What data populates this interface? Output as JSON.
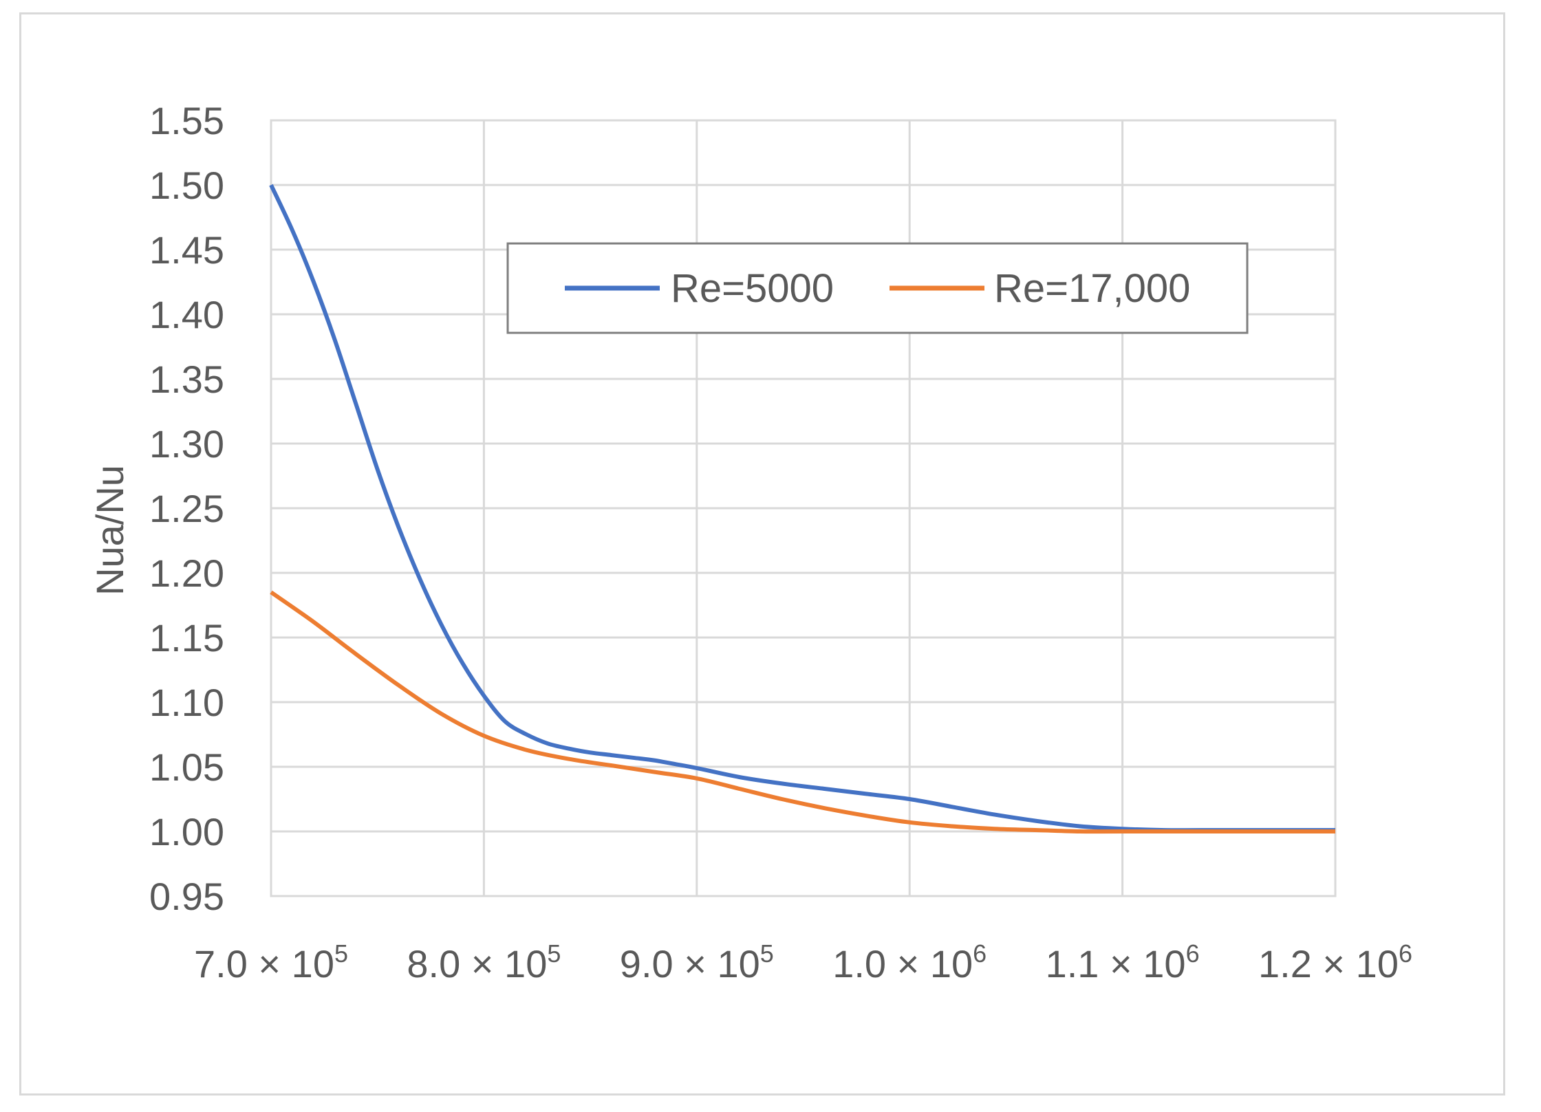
{
  "chart_data": {
    "type": "line",
    "title": "",
    "xlabel": "",
    "ylabel": "Nua/Nu",
    "xlim": [
      700000,
      1200000
    ],
    "ylim": [
      0.95,
      1.55
    ],
    "x_ticks": [
      {
        "value": 700000,
        "mantissa": "7.0",
        "times": "×",
        "base": "10",
        "exp": "5"
      },
      {
        "value": 800000,
        "mantissa": "8.0",
        "times": "×",
        "base": "10",
        "exp": "5"
      },
      {
        "value": 900000,
        "mantissa": "9.0",
        "times": "×",
        "base": "10",
        "exp": "5"
      },
      {
        "value": 1000000,
        "mantissa": "1.0",
        "times": "×",
        "base": "10",
        "exp": "6"
      },
      {
        "value": 1100000,
        "mantissa": "1.1",
        "times": "×",
        "base": "10",
        "exp": "6"
      },
      {
        "value": 1200000,
        "mantissa": "1.2",
        "times": "×",
        "base": "10",
        "exp": "6"
      }
    ],
    "y_ticks": [
      "0.95",
      "1.00",
      "1.05",
      "1.10",
      "1.15",
      "1.20",
      "1.25",
      "1.30",
      "1.35",
      "1.40",
      "1.45",
      "1.50",
      "1.55"
    ],
    "grid": true,
    "legend": "top-center",
    "series": [
      {
        "name": "Re=5000",
        "color": "#4472c4",
        "x": [
          700000,
          710000,
          720000,
          730000,
          740000,
          750000,
          760000,
          770000,
          780000,
          790000,
          800000,
          810000,
          820000,
          830000,
          840000,
          850000,
          860000,
          870000,
          880000,
          890000,
          900000,
          920000,
          940000,
          960000,
          980000,
          1000000,
          1020000,
          1040000,
          1060000,
          1080000,
          1100000,
          1120000,
          1150000,
          1200000
        ],
        "y": [
          1.5,
          1.465,
          1.425,
          1.38,
          1.33,
          1.28,
          1.235,
          1.195,
          1.16,
          1.13,
          1.105,
          1.085,
          1.075,
          1.068,
          1.064,
          1.061,
          1.059,
          1.057,
          1.055,
          1.052,
          1.049,
          1.042,
          1.037,
          1.033,
          1.029,
          1.025,
          1.019,
          1.013,
          1.008,
          1.004,
          1.002,
          1.001,
          1.001,
          1.001
        ]
      },
      {
        "name": "Re=17,000",
        "color": "#ed7d31",
        "x": [
          700000,
          720000,
          740000,
          760000,
          780000,
          800000,
          820000,
          840000,
          860000,
          880000,
          900000,
          920000,
          940000,
          960000,
          980000,
          1000000,
          1020000,
          1040000,
          1060000,
          1080000,
          1100000,
          1150000,
          1200000
        ],
        "y": [
          1.185,
          1.162,
          1.137,
          1.113,
          1.091,
          1.074,
          1.063,
          1.056,
          1.051,
          1.046,
          1.041,
          1.033,
          1.025,
          1.018,
          1.012,
          1.007,
          1.004,
          1.002,
          1.001,
          1.0,
          1.0,
          1.0,
          1.0
        ]
      }
    ]
  }
}
